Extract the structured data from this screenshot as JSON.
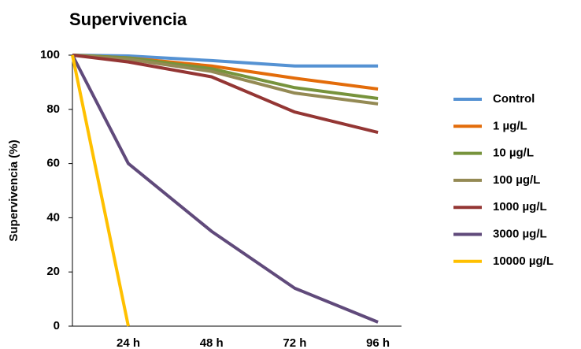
{
  "chart_data": {
    "type": "line",
    "title": "Supervivencia",
    "y_label": "Supervivencia (%)",
    "categories": [
      null,
      "24 h",
      "48 h",
      "72 h",
      "96 h"
    ],
    "ylim": [
      0,
      100
    ],
    "yticks": [
      0,
      20,
      40,
      60,
      80,
      100
    ],
    "legend": "right",
    "series": [
      {
        "name": "Control",
        "color": "#5592d3",
        "values": [
          100,
          99.7,
          98,
          96,
          96
        ]
      },
      {
        "name": "1 µg/L",
        "color": "#e36c0a",
        "values": [
          100,
          99,
          96,
          91.5,
          87.5
        ]
      },
      {
        "name": "10 µg/L",
        "color": "#77933c",
        "values": [
          100,
          99,
          95,
          88,
          84
        ]
      },
      {
        "name": "100 µg/L",
        "color": "#948a54",
        "values": [
          100,
          98.5,
          94,
          86,
          82
        ]
      },
      {
        "name": "1000 µg/L",
        "color": "#943634",
        "values": [
          100,
          97.5,
          92,
          79,
          71.5
        ]
      },
      {
        "name": "3000 µg/L",
        "color": "#604a7b",
        "values": [
          100,
          60,
          35,
          14,
          1.5
        ]
      },
      {
        "name": "10000 µg/L",
        "color": "#ffc000",
        "values": [
          100,
          0,
          null,
          null,
          null
        ]
      }
    ]
  }
}
